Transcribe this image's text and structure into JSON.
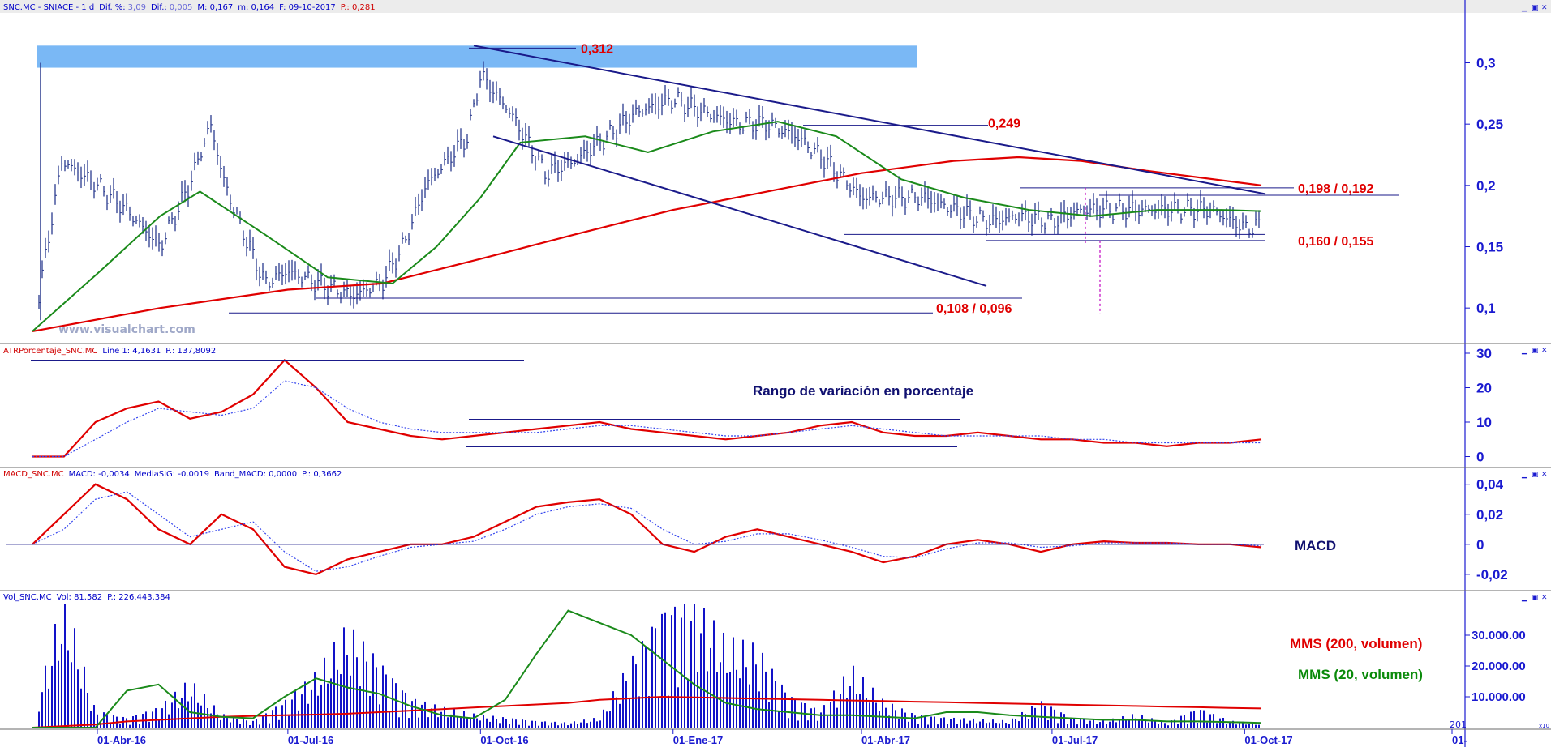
{
  "colors": {
    "axis_blue": "#1a1ad0",
    "price_bars": "#2a3a8e",
    "ma_red": "#e00000",
    "ma_green": "#1a8a1a",
    "signal_blue": "#3344ee",
    "trend_navy": "#1a1a8a",
    "zone_blue": "#7ab8f5",
    "annotation_red": "#e00000",
    "volume_bars": "#1212c8"
  },
  "window_controls": [
    "minimize-icon",
    "restore-icon",
    "close-icon"
  ],
  "panels": {
    "price": {
      "header": {
        "symbol": "SNC.MC - SNIACE - 1 d",
        "dif_pct_label": "Dif. %:",
        "dif_pct": "3,09",
        "dif_label": "Dif.:",
        "dif": "0,005",
        "max": "M: 0,167",
        "min": "m: 0,164",
        "date": "F: 09-10-2017",
        "close": "P.: 0,281"
      },
      "watermark": "www.visualchart.com"
    },
    "atr": {
      "header": {
        "name": "ATRPorcentaje_SNC.MC",
        "line1": "Line 1: 4,1631",
        "last": "P.: 137,8092"
      },
      "label": "Rango de variación en porcentaje"
    },
    "macd": {
      "header": {
        "name": "MACD_SNC.MC",
        "macd": "MACD: -0,0034",
        "signal": "MediaSIG: -0,0019",
        "band": "Band_MACD: 0,0000",
        "last": "P.: 0,3662"
      },
      "label": "MACD"
    },
    "volume": {
      "header": {
        "name": "Vol_SNC.MC",
        "vol": "Vol: 81.582",
        "last": "P.: 226.443.384"
      },
      "label_red": "MMS (200, volumen)",
      "label_green": "MMS (20, volumen)",
      "corner_tag": "201",
      "mini_tag": "x10"
    }
  },
  "chart_data": [
    {
      "type": "line",
      "panel": "price",
      "y_scale": "linear",
      "ylim": [
        0.075,
        0.338
      ],
      "yticks": [
        "0,1",
        "0,15",
        "0,2",
        "0,25",
        "0,3"
      ],
      "x_labels": [
        "01-Abr-16",
        "01-Jul-16",
        "01-Oct-16",
        "01-Ene-17",
        "01-Abr-17",
        "01-Jul-17",
        "01-Oct-17",
        "01-"
      ],
      "series": [
        {
          "kind": "ohlc",
          "x": [
            "2016-03-01",
            "2016-03-15",
            "2016-04-01",
            "2016-04-15",
            "2016-05-01",
            "2016-05-15",
            "2016-05-25",
            "2016-06-01",
            "2016-06-10",
            "2016-06-20",
            "2016-07-01",
            "2016-07-15",
            "2016-08-01",
            "2016-08-15",
            "2016-08-25",
            "2016-09-05",
            "2016-09-15",
            "2016-09-25",
            "2016-10-01",
            "2016-10-15",
            "2016-11-01",
            "2016-11-15",
            "2016-12-01",
            "2016-12-15",
            "2017-01-01",
            "2017-01-15",
            "2017-02-01",
            "2017-02-15",
            "2017-03-01",
            "2017-03-15",
            "2017-04-01",
            "2017-04-15",
            "2017-05-01",
            "2017-05-15",
            "2017-06-01",
            "2017-06-15",
            "2017-07-01",
            "2017-07-15",
            "2017-08-01",
            "2017-08-15",
            "2017-09-01",
            "2017-09-15",
            "2017-10-01",
            "2017-10-09"
          ],
          "values": [
            0.08,
            0.22,
            0.2,
            0.18,
            0.15,
            0.2,
            0.25,
            0.2,
            0.16,
            0.12,
            0.13,
            0.12,
            0.11,
            0.12,
            0.15,
            0.2,
            0.22,
            0.24,
            0.29,
            0.26,
            0.21,
            0.22,
            0.24,
            0.26,
            0.27,
            0.26,
            0.25,
            0.25,
            0.24,
            0.22,
            0.19,
            0.19,
            0.19,
            0.18,
            0.17,
            0.175,
            0.17,
            0.18,
            0.18,
            0.18,
            0.18,
            0.18,
            0.165,
            0.167
          ]
        },
        {
          "name": "",
          "kind": "ma-green",
          "x": [
            "2016-03-01",
            "2016-04-01",
            "2016-05-01",
            "2016-05-20",
            "2016-06-20",
            "2016-07-20",
            "2016-08-20",
            "2016-09-10",
            "2016-10-01",
            "2016-10-20",
            "2016-11-20",
            "2016-12-20",
            "2017-01-20",
            "2017-02-20",
            "2017-03-20",
            "2017-04-20",
            "2017-05-20",
            "2017-06-20",
            "2017-07-20",
            "2017-08-20",
            "2017-09-20",
            "2017-10-09"
          ],
          "values": [
            0.081,
            0.128,
            0.175,
            0.195,
            0.16,
            0.125,
            0.12,
            0.15,
            0.19,
            0.235,
            0.24,
            0.227,
            0.244,
            0.252,
            0.24,
            0.205,
            0.19,
            0.18,
            0.175,
            0.18,
            0.18,
            0.179
          ]
        },
        {
          "name": "",
          "kind": "ma-red",
          "x": [
            "2016-03-01",
            "2016-05-01",
            "2016-07-01",
            "2016-08-15",
            "2016-10-01",
            "2016-11-15",
            "2017-01-01",
            "2017-02-15",
            "2017-04-01",
            "2017-05-15",
            "2017-06-15",
            "2017-07-15",
            "2017-08-15",
            "2017-10-09"
          ],
          "values": [
            0.081,
            0.1,
            0.115,
            0.12,
            0.14,
            0.16,
            0.18,
            0.195,
            0.21,
            0.22,
            0.223,
            0.22,
            0.212,
            0.2
          ]
        }
      ],
      "resistance_zone": [
        0.296,
        0.314
      ],
      "levels": [
        {
          "label": "0,312",
          "value": 0.312
        },
        {
          "label": "0,249",
          "value": 0.249
        },
        {
          "label": "0,198 / 0,192",
          "values": [
            0.198,
            0.192
          ]
        },
        {
          "label": "0,160 / 0,155",
          "values": [
            0.16,
            0.155
          ]
        },
        {
          "label": "0,108 / 0,096",
          "values": [
            0.108,
            0.096
          ]
        }
      ]
    },
    {
      "type": "line",
      "panel": "atr",
      "ylim": [
        -2,
        30
      ],
      "yticks": [
        "0",
        "10",
        "20",
        "30"
      ],
      "series": [
        {
          "name": "",
          "values": [
            0,
            0,
            10,
            14,
            16,
            11,
            13,
            18,
            28,
            20,
            10,
            8,
            6,
            5,
            6,
            7,
            8,
            9,
            10,
            8,
            7,
            6,
            5,
            6,
            7,
            9,
            10,
            7,
            6,
            6,
            7,
            6,
            5,
            5,
            4,
            4,
            3,
            4,
            4,
            5
          ]
        },
        {
          "name": "",
          "kind": "signal",
          "values": [
            0,
            0,
            5,
            10,
            14,
            13,
            12,
            14,
            22,
            20,
            14,
            10,
            8,
            7,
            7,
            7,
            7,
            8,
            9,
            9,
            8,
            7,
            6,
            6,
            7,
            8,
            9,
            8,
            7,
            6,
            6,
            6,
            6,
            5,
            5,
            4,
            4,
            4,
            4,
            4
          ]
        }
      ]
    },
    {
      "type": "line",
      "panel": "macd",
      "ylim": [
        -0.026,
        0.042
      ],
      "yticks": [
        "0,04",
        "0,02",
        "0",
        "-0,02"
      ],
      "series": [
        {
          "name": "",
          "values": [
            0,
            0.02,
            0.04,
            0.03,
            0.01,
            0,
            0.02,
            0.01,
            -0.015,
            -0.02,
            -0.01,
            -0.005,
            0,
            0,
            0.005,
            0.015,
            0.025,
            0.028,
            0.03,
            0.02,
            0,
            -0.005,
            0.005,
            0.01,
            0.005,
            0,
            -0.005,
            -0.012,
            -0.008,
            0,
            0.003,
            0,
            -0.005,
            0,
            0.002,
            0.001,
            0.001,
            0,
            0,
            -0.002
          ]
        },
        {
          "name": "",
          "kind": "signal",
          "values": [
            0,
            0.01,
            0.03,
            0.035,
            0.02,
            0.005,
            0.01,
            0.015,
            -0.005,
            -0.018,
            -0.015,
            -0.008,
            -0.002,
            0,
            0.002,
            0.01,
            0.02,
            0.025,
            0.027,
            0.024,
            0.01,
            0,
            0.002,
            0.007,
            0.007,
            0.003,
            -0.002,
            -0.008,
            -0.009,
            -0.003,
            0.001,
            0.001,
            -0.002,
            -0.001,
            0.001,
            0.001,
            0.001,
            0,
            0,
            -0.001
          ]
        }
      ]
    },
    {
      "type": "bar",
      "panel": "volume",
      "ylim": [
        0,
        40000
      ],
      "yticks": [
        "10.000.00",
        "20.000.00",
        "30.000.00"
      ],
      "series": [
        {
          "name": "",
          "kind": "volume",
          "values": [
            2000,
            40000,
            5000,
            3000,
            6000,
            14000,
            4000,
            2000,
            8000,
            16000,
            30000,
            20000,
            9000,
            6000,
            4000,
            3000,
            2000,
            1500,
            3000,
            20000,
            36000,
            38000,
            26000,
            24000,
            10000,
            5000,
            18000,
            8000,
            4000,
            3000,
            2500,
            2000,
            8000,
            3000,
            2000,
            4000,
            1500,
            6000,
            2000,
            1200
          ]
        },
        {
          "name": "",
          "kind": "ma20",
          "values": [
            0,
            0,
            0,
            12000,
            14000,
            5000,
            3500,
            3000,
            10000,
            16000,
            13000,
            11000,
            7000,
            4000,
            3000,
            9000,
            24000,
            38000,
            34000,
            30000,
            22000,
            14000,
            8000,
            6000,
            5000,
            4000,
            4000,
            3500,
            3000,
            5000,
            5000,
            4000,
            3500,
            3000,
            2500,
            2500,
            2000,
            2000,
            1800,
            1500
          ]
        },
        {
          "name": "",
          "kind": "ma200",
          "values": [
            0,
            500,
            1000,
            2000,
            2500,
            3000,
            3500,
            3800,
            4000,
            4200,
            4500,
            5000,
            5500,
            6000,
            6500,
            7000,
            7500,
            8000,
            9000,
            9500,
            10000,
            9800,
            9600,
            9400,
            9200,
            9000,
            8800,
            8600,
            8400,
            8200,
            8000,
            7800,
            7600,
            7400,
            7200,
            7000,
            6800,
            6600,
            6400,
            6200
          ]
        }
      ]
    }
  ]
}
